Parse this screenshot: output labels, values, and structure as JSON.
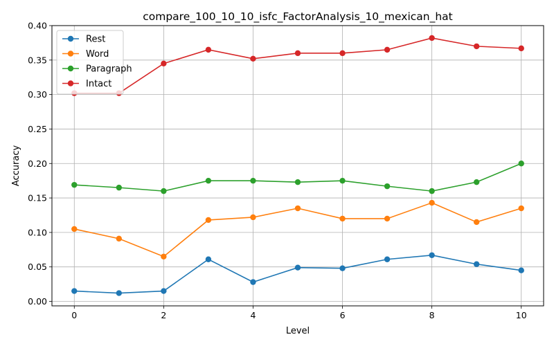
{
  "chart_data": {
    "type": "line",
    "title": "compare_100_10_10_isfc_FactorAnalysis_10_mexican_hat",
    "xlabel": "Level",
    "ylabel": "Accuracy",
    "xlim": [
      -0.5,
      10.5
    ],
    "ylim": [
      -0.0065,
      0.4
    ],
    "xticks": [
      0,
      2,
      4,
      6,
      8,
      10
    ],
    "xtick_labels": [
      "0",
      "2",
      "4",
      "6",
      "8",
      "10"
    ],
    "yticks": [
      0.0,
      0.05,
      0.1,
      0.15,
      0.2,
      0.25,
      0.3,
      0.35,
      0.4
    ],
    "ytick_labels": [
      "0.00",
      "0.05",
      "0.10",
      "0.15",
      "0.20",
      "0.25",
      "0.30",
      "0.35",
      "0.40"
    ],
    "grid": true,
    "legend_position": "top-left",
    "x": [
      0,
      1,
      2,
      3,
      4,
      5,
      6,
      7,
      8,
      9,
      10
    ],
    "series": [
      {
        "name": "Rest",
        "color": "#1f77b4",
        "values": [
          0.015,
          0.012,
          0.015,
          0.061,
          0.028,
          0.049,
          0.048,
          0.061,
          0.067,
          0.054,
          0.045
        ]
      },
      {
        "name": "Word",
        "color": "#ff7f0e",
        "values": [
          0.105,
          0.091,
          0.065,
          0.118,
          0.122,
          0.135,
          0.12,
          0.12,
          0.143,
          0.115,
          0.135
        ]
      },
      {
        "name": "Paragraph",
        "color": "#2ca02c",
        "values": [
          0.169,
          0.165,
          0.16,
          0.175,
          0.175,
          0.173,
          0.175,
          0.167,
          0.16,
          0.173,
          0.2
        ]
      },
      {
        "name": "Intact",
        "color": "#d62728",
        "values": [
          0.302,
          0.302,
          0.345,
          0.365,
          0.352,
          0.36,
          0.36,
          0.365,
          0.382,
          0.37,
          0.367
        ]
      }
    ]
  }
}
